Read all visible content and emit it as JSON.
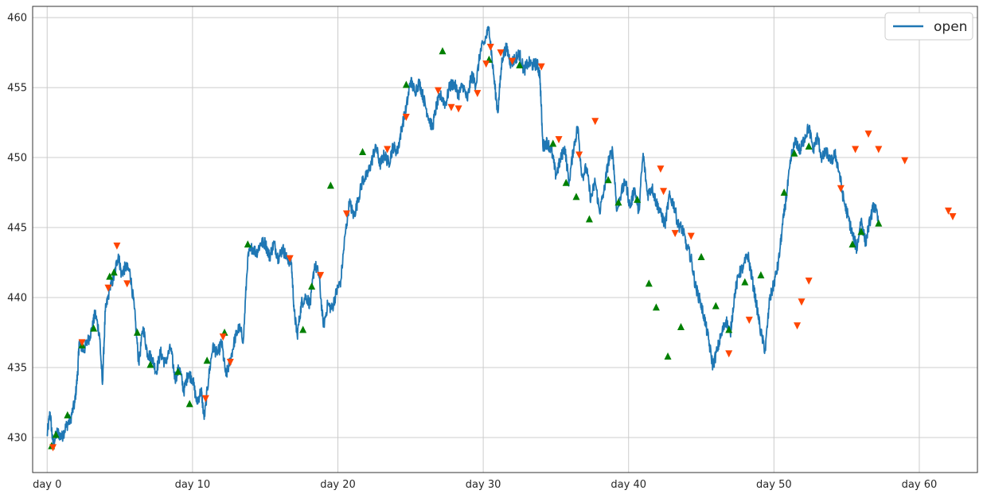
{
  "chart_data": {
    "type": "line",
    "title": "",
    "xlabel": "",
    "ylabel": "",
    "xlim": [
      -1,
      64
    ],
    "ylim": [
      427.5,
      460.8
    ],
    "x_ticks": [
      {
        "value": 0,
        "label": "day 0"
      },
      {
        "value": 10,
        "label": "day 10"
      },
      {
        "value": 20,
        "label": "day 20"
      },
      {
        "value": 30,
        "label": "day 30"
      },
      {
        "value": 40,
        "label": "day 40"
      },
      {
        "value": 50,
        "label": "day 50"
      },
      {
        "value": 60,
        "label": "day 60"
      }
    ],
    "y_ticks": [
      {
        "value": 430,
        "label": "430"
      },
      {
        "value": 435,
        "label": "435"
      },
      {
        "value": 440,
        "label": "440"
      },
      {
        "value": 445,
        "label": "445"
      },
      {
        "value": 450,
        "label": "450"
      },
      {
        "value": 455,
        "label": "455"
      },
      {
        "value": 460,
        "label": "460"
      }
    ],
    "grid": true,
    "legend": {
      "position": "top-right",
      "entries": [
        {
          "label": "open",
          "color": "#1f77b4"
        }
      ]
    },
    "series": [
      {
        "name": "open",
        "color": "#1f77b4",
        "points": [
          [
            0.0,
            430.2
          ],
          [
            0.2,
            431.8
          ],
          [
            0.4,
            429.5
          ],
          [
            0.7,
            430.4
          ],
          [
            1.0,
            430.0
          ],
          [
            1.3,
            430.8
          ],
          [
            1.6,
            431.3
          ],
          [
            1.9,
            432.5
          ],
          [
            2.1,
            434.6
          ],
          [
            2.2,
            436.8
          ],
          [
            2.5,
            436.2
          ],
          [
            2.8,
            436.9
          ],
          [
            3.1,
            437.8
          ],
          [
            3.3,
            438.9
          ],
          [
            3.6,
            437.4
          ],
          [
            3.8,
            433.8
          ],
          [
            4.0,
            439.0
          ],
          [
            4.3,
            440.6
          ],
          [
            4.6,
            441.5
          ],
          [
            4.9,
            443.1
          ],
          [
            5.1,
            441.7
          ],
          [
            5.4,
            442.2
          ],
          [
            5.7,
            441.8
          ],
          [
            6.0,
            439.2
          ],
          [
            6.3,
            435.3
          ],
          [
            6.6,
            437.9
          ],
          [
            6.9,
            436.0
          ],
          [
            7.2,
            435.7
          ],
          [
            7.5,
            434.7
          ],
          [
            7.8,
            436.1
          ],
          [
            8.1,
            435.3
          ],
          [
            8.5,
            436.4
          ],
          [
            8.8,
            434.2
          ],
          [
            9.1,
            435.0
          ],
          [
            9.4,
            433.3
          ],
          [
            9.7,
            434.6
          ],
          [
            10.0,
            434.2
          ],
          [
            10.3,
            432.5
          ],
          [
            10.6,
            433.4
          ],
          [
            10.8,
            431.3
          ],
          [
            11.1,
            434.2
          ],
          [
            11.4,
            436.6
          ],
          [
            11.7,
            435.9
          ],
          [
            12.0,
            436.8
          ],
          [
            12.3,
            434.4
          ],
          [
            12.6,
            435.5
          ],
          [
            12.9,
            437.0
          ],
          [
            13.2,
            437.9
          ],
          [
            13.5,
            437.0
          ],
          [
            13.8,
            442.9
          ],
          [
            14.1,
            443.6
          ],
          [
            14.4,
            443.2
          ],
          [
            14.7,
            443.9
          ],
          [
            15.0,
            443.9
          ],
          [
            15.3,
            442.9
          ],
          [
            15.6,
            443.9
          ],
          [
            15.9,
            442.8
          ],
          [
            16.2,
            443.5
          ],
          [
            16.5,
            442.8
          ],
          [
            16.8,
            442.5
          ],
          [
            17.0,
            439.0
          ],
          [
            17.2,
            437.3
          ],
          [
            17.5,
            439.6
          ],
          [
            17.8,
            440.1
          ],
          [
            18.1,
            439.5
          ],
          [
            18.4,
            442.4
          ],
          [
            18.7,
            441.6
          ],
          [
            19.0,
            437.9
          ],
          [
            19.3,
            439.5
          ],
          [
            19.6,
            439.2
          ],
          [
            19.9,
            440.4
          ],
          [
            20.2,
            441.2
          ],
          [
            20.5,
            444.5
          ],
          [
            20.8,
            446.8
          ],
          [
            21.1,
            445.8
          ],
          [
            21.4,
            447.0
          ],
          [
            21.7,
            448.4
          ],
          [
            22.0,
            448.7
          ],
          [
            22.3,
            449.6
          ],
          [
            22.6,
            450.9
          ],
          [
            22.9,
            449.5
          ],
          [
            23.2,
            450.2
          ],
          [
            23.5,
            449.6
          ],
          [
            23.8,
            450.8
          ],
          [
            24.1,
            450.4
          ],
          [
            24.4,
            452.2
          ],
          [
            24.7,
            453.5
          ],
          [
            25.0,
            455.5
          ],
          [
            25.3,
            454.7
          ],
          [
            25.6,
            455.4
          ],
          [
            25.9,
            454.2
          ],
          [
            26.2,
            453.0
          ],
          [
            26.5,
            452.1
          ],
          [
            26.8,
            453.8
          ],
          [
            27.1,
            454.4
          ],
          [
            27.4,
            453.8
          ],
          [
            27.7,
            455.1
          ],
          [
            28.0,
            455.3
          ],
          [
            28.3,
            454.5
          ],
          [
            28.6,
            455.2
          ],
          [
            28.9,
            454.1
          ],
          [
            29.2,
            455.9
          ],
          [
            29.5,
            455.2
          ],
          [
            29.8,
            457.6
          ],
          [
            30.1,
            458.3
          ],
          [
            30.4,
            459.3
          ],
          [
            30.7,
            456.0
          ],
          [
            31.0,
            453.2
          ],
          [
            31.3,
            457.1
          ],
          [
            31.6,
            457.9
          ],
          [
            31.9,
            456.7
          ],
          [
            32.2,
            457.1
          ],
          [
            32.5,
            457.4
          ],
          [
            32.8,
            456.2
          ],
          [
            33.1,
            456.8
          ],
          [
            33.4,
            456.6
          ],
          [
            33.7,
            456.7
          ],
          [
            33.9,
            455.9
          ],
          [
            34.1,
            450.8
          ],
          [
            34.4,
            451.1
          ],
          [
            34.7,
            450.5
          ],
          [
            35.0,
            448.7
          ],
          [
            35.3,
            449.8
          ],
          [
            35.6,
            450.8
          ],
          [
            35.9,
            448.2
          ],
          [
            36.2,
            450.6
          ],
          [
            36.5,
            452.2
          ],
          [
            36.8,
            448.6
          ],
          [
            37.1,
            449.3
          ],
          [
            37.4,
            447.0
          ],
          [
            37.7,
            448.3
          ],
          [
            38.0,
            446.1
          ],
          [
            38.3,
            447.6
          ],
          [
            38.6,
            449.7
          ],
          [
            38.9,
            450.5
          ],
          [
            39.2,
            446.2
          ],
          [
            39.5,
            447.5
          ],
          [
            39.8,
            448.3
          ],
          [
            40.1,
            446.4
          ],
          [
            40.4,
            447.8
          ],
          [
            40.7,
            446.1
          ],
          [
            41.0,
            450.3
          ],
          [
            41.3,
            447.3
          ],
          [
            41.6,
            447.9
          ],
          [
            41.9,
            446.8
          ],
          [
            42.2,
            446.1
          ],
          [
            42.5,
            445.2
          ],
          [
            42.8,
            447.2
          ],
          [
            43.1,
            446.7
          ],
          [
            43.4,
            445.2
          ],
          [
            43.7,
            444.9
          ],
          [
            44.0,
            443.7
          ],
          [
            44.3,
            442.8
          ],
          [
            44.6,
            440.8
          ],
          [
            44.9,
            439.8
          ],
          [
            45.2,
            438.6
          ],
          [
            45.5,
            437.0
          ],
          [
            45.8,
            435.1
          ],
          [
            46.1,
            436.3
          ],
          [
            46.4,
            437.4
          ],
          [
            46.7,
            438.4
          ],
          [
            47.0,
            437.4
          ],
          [
            47.3,
            440.3
          ],
          [
            47.6,
            441.7
          ],
          [
            47.9,
            442.2
          ],
          [
            48.2,
            443.1
          ],
          [
            48.5,
            441.3
          ],
          [
            48.8,
            439.5
          ],
          [
            49.1,
            437.5
          ],
          [
            49.4,
            436.2
          ],
          [
            49.7,
            439.8
          ],
          [
            50.0,
            441.0
          ],
          [
            50.3,
            442.4
          ],
          [
            50.6,
            445.2
          ],
          [
            50.9,
            447.6
          ],
          [
            51.2,
            450.1
          ],
          [
            51.5,
            451.2
          ],
          [
            51.8,
            450.5
          ],
          [
            52.1,
            451.4
          ],
          [
            52.4,
            452.2
          ],
          [
            52.7,
            450.6
          ],
          [
            53.0,
            451.5
          ],
          [
            53.3,
            449.9
          ],
          [
            53.6,
            450.5
          ],
          [
            53.9,
            449.6
          ],
          [
            54.2,
            450.3
          ],
          [
            54.5,
            448.9
          ],
          [
            54.8,
            446.9
          ],
          [
            55.1,
            445.8
          ],
          [
            55.4,
            444.5
          ],
          [
            55.7,
            443.5
          ],
          [
            56.0,
            445.6
          ],
          [
            56.3,
            443.9
          ],
          [
            56.6,
            445.5
          ],
          [
            56.9,
            446.7
          ],
          [
            57.2,
            445.3
          ]
        ]
      }
    ],
    "buy_markers": {
      "marker": "triangle-up",
      "color": "#008000",
      "points": [
        [
          0.3,
          429.4
        ],
        [
          0.6,
          430.2
        ],
        [
          1.4,
          431.6
        ],
        [
          2.4,
          436.6
        ],
        [
          3.2,
          437.8
        ],
        [
          4.3,
          441.5
        ],
        [
          4.6,
          441.8
        ],
        [
          6.2,
          437.5
        ],
        [
          7.1,
          435.2
        ],
        [
          9.0,
          434.7
        ],
        [
          9.8,
          432.4
        ],
        [
          11.0,
          435.5
        ],
        [
          12.2,
          437.5
        ],
        [
          13.8,
          443.8
        ],
        [
          17.6,
          437.7
        ],
        [
          18.2,
          440.8
        ],
        [
          19.5,
          448.0
        ],
        [
          21.7,
          450.4
        ],
        [
          24.7,
          455.2
        ],
        [
          27.2,
          457.6
        ],
        [
          30.4,
          457.0
        ],
        [
          32.5,
          456.6
        ],
        [
          34.8,
          451.0
        ],
        [
          35.7,
          448.2
        ],
        [
          36.4,
          447.2
        ],
        [
          37.3,
          445.6
        ],
        [
          38.6,
          448.4
        ],
        [
          39.3,
          446.8
        ],
        [
          40.6,
          447.0
        ],
        [
          41.4,
          441.0
        ],
        [
          41.9,
          439.3
        ],
        [
          42.7,
          435.8
        ],
        [
          43.6,
          437.9
        ],
        [
          45.0,
          442.9
        ],
        [
          46.0,
          439.4
        ],
        [
          46.9,
          437.7
        ],
        [
          48.0,
          441.1
        ],
        [
          49.1,
          441.6
        ],
        [
          50.7,
          447.5
        ],
        [
          51.4,
          450.3
        ],
        [
          52.4,
          450.8
        ],
        [
          55.4,
          443.8
        ],
        [
          56.0,
          444.7
        ],
        [
          57.2,
          445.3
        ]
      ]
    },
    "sell_markers": {
      "marker": "triangle-down",
      "color": "#ff4500",
      "points": [
        [
          0.4,
          429.3
        ],
        [
          2.4,
          436.8
        ],
        [
          4.2,
          440.7
        ],
        [
          4.8,
          443.7
        ],
        [
          5.5,
          441.0
        ],
        [
          10.9,
          432.8
        ],
        [
          12.1,
          437.2
        ],
        [
          12.6,
          435.4
        ],
        [
          16.7,
          442.8
        ],
        [
          18.8,
          441.6
        ],
        [
          20.6,
          446.0
        ],
        [
          23.4,
          450.6
        ],
        [
          24.7,
          452.9
        ],
        [
          26.9,
          454.8
        ],
        [
          27.8,
          453.6
        ],
        [
          28.3,
          453.5
        ],
        [
          29.6,
          454.6
        ],
        [
          30.2,
          456.7
        ],
        [
          30.5,
          457.9
        ],
        [
          31.2,
          457.5
        ],
        [
          32.0,
          456.9
        ],
        [
          34.0,
          456.5
        ],
        [
          35.2,
          451.3
        ],
        [
          36.6,
          450.2
        ],
        [
          37.7,
          452.6
        ],
        [
          42.2,
          449.2
        ],
        [
          42.4,
          447.6
        ],
        [
          43.2,
          444.6
        ],
        [
          44.3,
          444.4
        ],
        [
          46.9,
          436.0
        ],
        [
          48.3,
          438.4
        ],
        [
          51.6,
          438.0
        ],
        [
          51.9,
          439.7
        ],
        [
          52.4,
          441.2
        ],
        [
          54.6,
          447.8
        ],
        [
          55.6,
          450.6
        ],
        [
          56.5,
          451.7
        ],
        [
          57.2,
          450.6
        ],
        [
          59.0,
          449.8
        ],
        [
          62.0,
          446.2
        ],
        [
          62.3,
          445.8
        ]
      ]
    }
  }
}
